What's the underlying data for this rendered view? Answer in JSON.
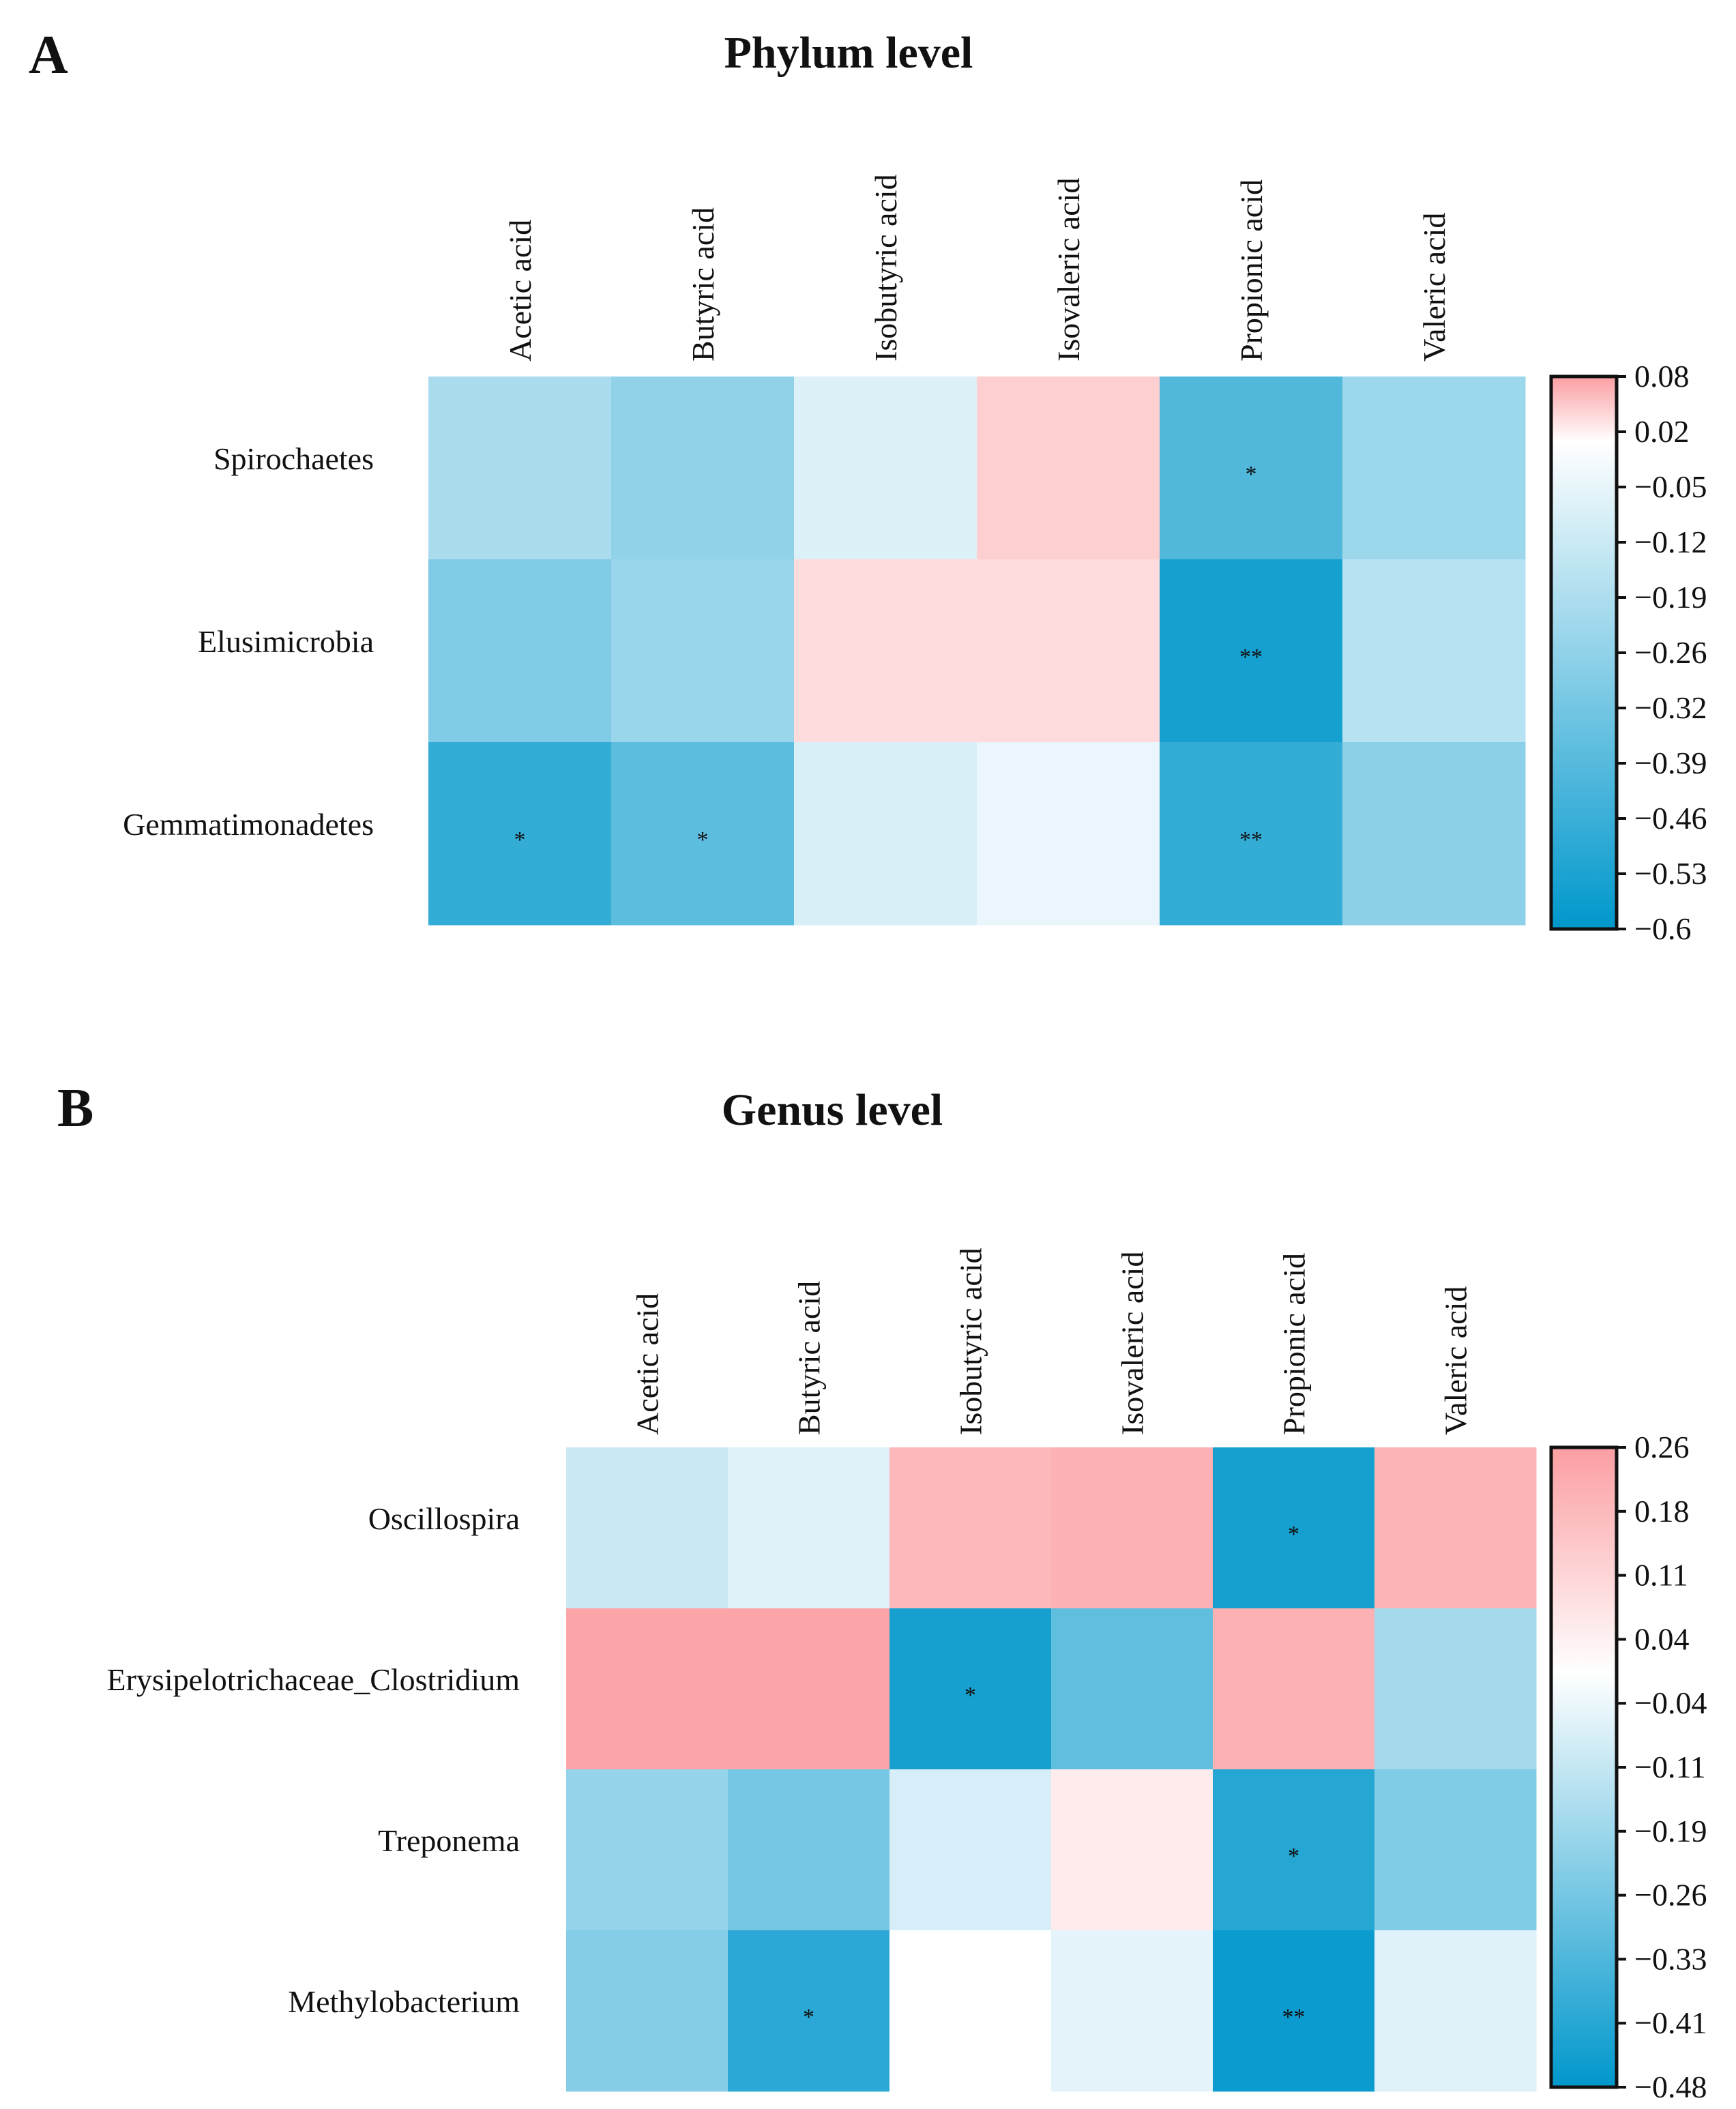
{
  "panel_a": {
    "letter": "A",
    "title": "Phylum level"
  },
  "panel_b": {
    "letter": "B",
    "title": "Genus level"
  },
  "chart_data": [
    {
      "type": "heatmap",
      "title": "Phylum level",
      "columns": [
        "Acetic acid",
        "Butyric acid",
        "Isobutyric acid",
        "Isovaleric acid",
        "Propionic acid",
        "Valeric acid"
      ],
      "rows": [
        "Spirochaetes",
        "Elusimicrobia",
        "Gemmatimonadetes"
      ],
      "values": [
        [
          -0.2,
          -0.26,
          -0.08,
          0.04,
          -0.41,
          -0.23
        ],
        [
          -0.3,
          -0.24,
          0.03,
          0.03,
          -0.55,
          -0.17
        ],
        [
          -0.48,
          -0.38,
          -0.09,
          -0.05,
          -0.48,
          -0.27
        ]
      ],
      "significance": [
        [
          "",
          "",
          "",
          "",
          "*",
          ""
        ],
        [
          "",
          "",
          "",
          "",
          "**",
          ""
        ],
        [
          "*",
          "*",
          "",
          "",
          "**",
          ""
        ]
      ],
      "colorbar": {
        "min": -0.6,
        "max": 0.08,
        "ticks": [
          "0.08",
          "0.02",
          "−0.05",
          "−0.12",
          "−0.19",
          "−0.26",
          "−0.32",
          "−0.39",
          "−0.46",
          "−0.53",
          "−0.6"
        ]
      }
    },
    {
      "type": "heatmap",
      "title": "Genus level",
      "columns": [
        "Acetic acid",
        "Butyric acid",
        "Isobutyric acid",
        "Isovaleric acid",
        "Propionic acid",
        "Valeric acid"
      ],
      "rows": [
        "Oscillospira",
        "Erysipelotrichaceae_Clostridium",
        "Treponema",
        "Methylobacterium"
      ],
      "values": [
        [
          -0.1,
          -0.06,
          0.19,
          0.21,
          -0.44,
          0.2
        ],
        [
          0.24,
          0.24,
          -0.44,
          -0.3,
          0.21,
          -0.17
        ],
        [
          -0.2,
          -0.26,
          -0.08,
          0.05,
          -0.41,
          -0.24
        ],
        [
          -0.23,
          -0.4,
          0.0,
          -0.05,
          -0.46,
          -0.06
        ]
      ],
      "significance": [
        [
          "",
          "",
          "",
          "",
          "*",
          ""
        ],
        [
          "",
          "",
          "*",
          "",
          "",
          ""
        ],
        [
          "",
          "",
          "",
          "",
          "*",
          ""
        ],
        [
          "",
          "*",
          "",
          "",
          "**",
          ""
        ]
      ],
      "colorbar": {
        "min": -0.48,
        "max": 0.26,
        "ticks": [
          "0.26",
          "0.18",
          "0.11",
          "0.04",
          "−0.04",
          "−0.11",
          "−0.19",
          "−0.26",
          "−0.33",
          "−0.41",
          "−0.48"
        ]
      }
    }
  ],
  "colors": {
    "negative": "#0097cc",
    "neutral": "#ffffff",
    "positive": "#fb9ea2"
  }
}
